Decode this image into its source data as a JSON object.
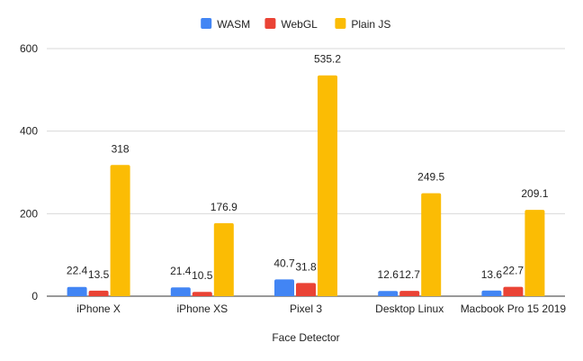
{
  "chart_data": {
    "type": "bar",
    "title": "",
    "xlabel": "Face Detector",
    "ylabel": "",
    "ylim": [
      0,
      600
    ],
    "yticks": [
      0,
      200,
      400,
      600
    ],
    "grid": true,
    "legend_position": "top",
    "categories": [
      "iPhone X",
      "iPhone XS",
      "Pixel 3",
      "Desktop Linux",
      "Macbook Pro 15 2019"
    ],
    "series": [
      {
        "name": "WASM",
        "color": "#4285f4",
        "values": [
          22.4,
          21.4,
          40.7,
          12.6,
          13.6
        ]
      },
      {
        "name": "WebGL",
        "color": "#ea4335",
        "values": [
          13.5,
          10.5,
          31.8,
          12.7,
          22.7
        ]
      },
      {
        "name": "Plain JS",
        "color": "#fbbc04",
        "values": [
          318,
          176.9,
          535.2,
          249.5,
          209.1
        ]
      }
    ]
  }
}
